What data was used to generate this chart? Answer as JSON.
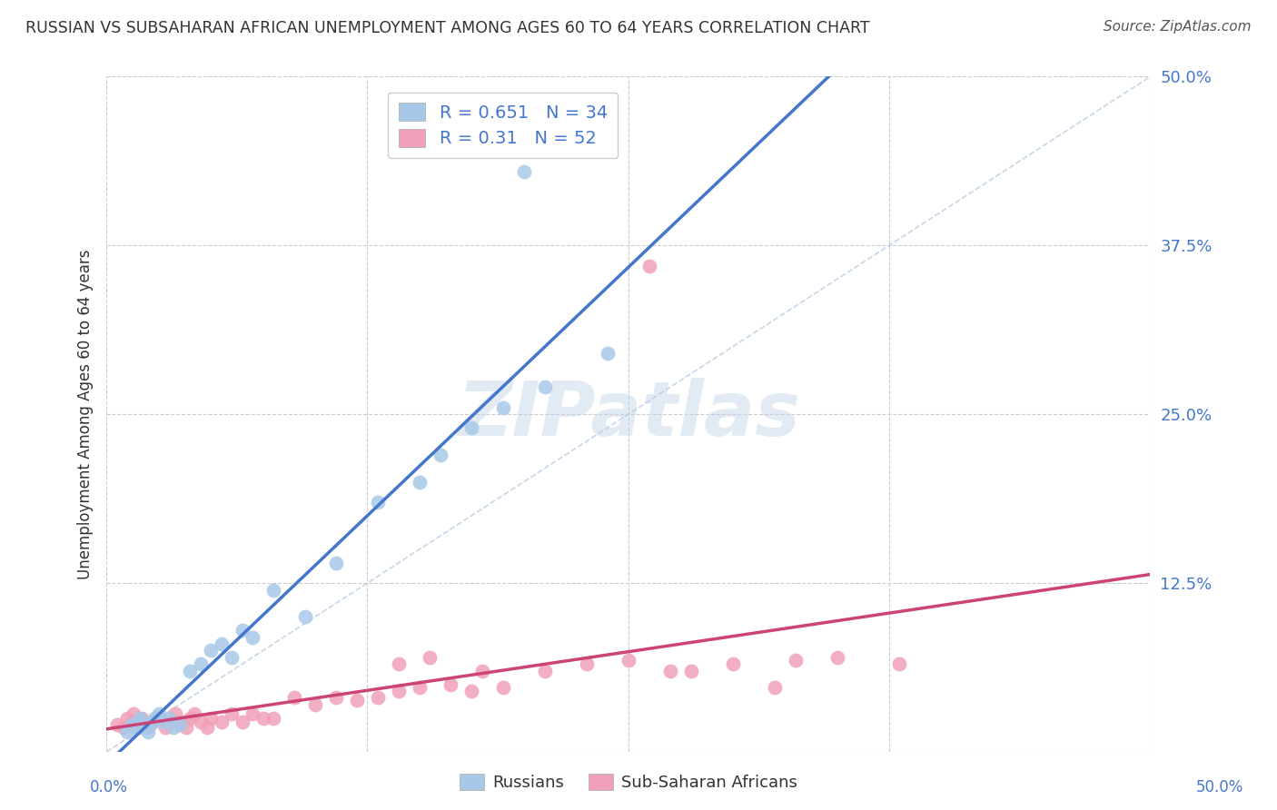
{
  "title": "RUSSIAN VS SUBSAHARAN AFRICAN UNEMPLOYMENT AMONG AGES 60 TO 64 YEARS CORRELATION CHART",
  "source": "Source: ZipAtlas.com",
  "ylabel": "Unemployment Among Ages 60 to 64 years",
  "xlim": [
    0.0,
    0.5
  ],
  "ylim": [
    0.0,
    0.5
  ],
  "yticks": [
    0.0,
    0.125,
    0.25,
    0.375,
    0.5
  ],
  "ytick_labels": [
    "",
    "12.5%",
    "25.0%",
    "37.5%",
    "50.0%"
  ],
  "xtick_positions": [
    0.0,
    0.125,
    0.25,
    0.375,
    0.5
  ],
  "russian_color": "#a8c8e8",
  "russian_edge_color": "#a8c8e8",
  "russian_line_color": "#4477cc",
  "subsaharan_color": "#f0a0b8",
  "subsaharan_edge_color": "#f0a0b8",
  "subsaharan_line_color": "#cc4477",
  "diagonal_color": "#b8cce4",
  "russian_R": 0.651,
  "russian_N": 34,
  "subsaharan_R": 0.31,
  "subsaharan_N": 52,
  "legend_label1": "Russians",
  "legend_label2": "Sub-Saharan Africans",
  "watermark_text": "ZIPatlas",
  "russian_x": [
    0.01,
    0.012,
    0.013,
    0.015,
    0.016,
    0.017,
    0.018,
    0.02,
    0.021,
    0.022,
    0.023,
    0.025,
    0.027,
    0.03,
    0.032,
    0.035,
    0.04,
    0.045,
    0.05,
    0.055,
    0.06,
    0.065,
    0.07,
    0.08,
    0.095,
    0.11,
    0.13,
    0.15,
    0.16,
    0.175,
    0.19,
    0.21,
    0.24,
    0.2
  ],
  "russian_y": [
    0.015,
    0.02,
    0.018,
    0.022,
    0.025,
    0.02,
    0.018,
    0.015,
    0.02,
    0.022,
    0.025,
    0.028,
    0.022,
    0.025,
    0.018,
    0.02,
    0.06,
    0.065,
    0.075,
    0.08,
    0.07,
    0.09,
    0.085,
    0.12,
    0.1,
    0.14,
    0.185,
    0.2,
    0.22,
    0.24,
    0.255,
    0.27,
    0.295,
    0.43
  ],
  "subsaharan_x": [
    0.005,
    0.008,
    0.01,
    0.012,
    0.013,
    0.015,
    0.016,
    0.017,
    0.018,
    0.02,
    0.022,
    0.025,
    0.028,
    0.03,
    0.033,
    0.035,
    0.038,
    0.04,
    0.042,
    0.045,
    0.048,
    0.05,
    0.055,
    0.06,
    0.065,
    0.07,
    0.075,
    0.08,
    0.09,
    0.1,
    0.11,
    0.12,
    0.13,
    0.14,
    0.15,
    0.165,
    0.175,
    0.19,
    0.21,
    0.23,
    0.25,
    0.27,
    0.3,
    0.33,
    0.35,
    0.38,
    0.14,
    0.155,
    0.18,
    0.28,
    0.32,
    0.26
  ],
  "subsaharan_y": [
    0.02,
    0.018,
    0.025,
    0.022,
    0.028,
    0.018,
    0.022,
    0.025,
    0.02,
    0.018,
    0.022,
    0.025,
    0.018,
    0.022,
    0.028,
    0.022,
    0.018,
    0.025,
    0.028,
    0.022,
    0.018,
    0.025,
    0.022,
    0.028,
    0.022,
    0.028,
    0.025,
    0.025,
    0.04,
    0.035,
    0.04,
    0.038,
    0.04,
    0.045,
    0.048,
    0.05,
    0.045,
    0.048,
    0.06,
    0.065,
    0.068,
    0.06,
    0.065,
    0.068,
    0.07,
    0.065,
    0.065,
    0.07,
    0.06,
    0.06,
    0.048,
    0.36
  ],
  "bg_color": "#ffffff",
  "title_color": "#333333",
  "axis_label_color": "#333333",
  "tick_label_color": "#4477cc",
  "grid_color": "#cccccc",
  "grid_style": "--"
}
